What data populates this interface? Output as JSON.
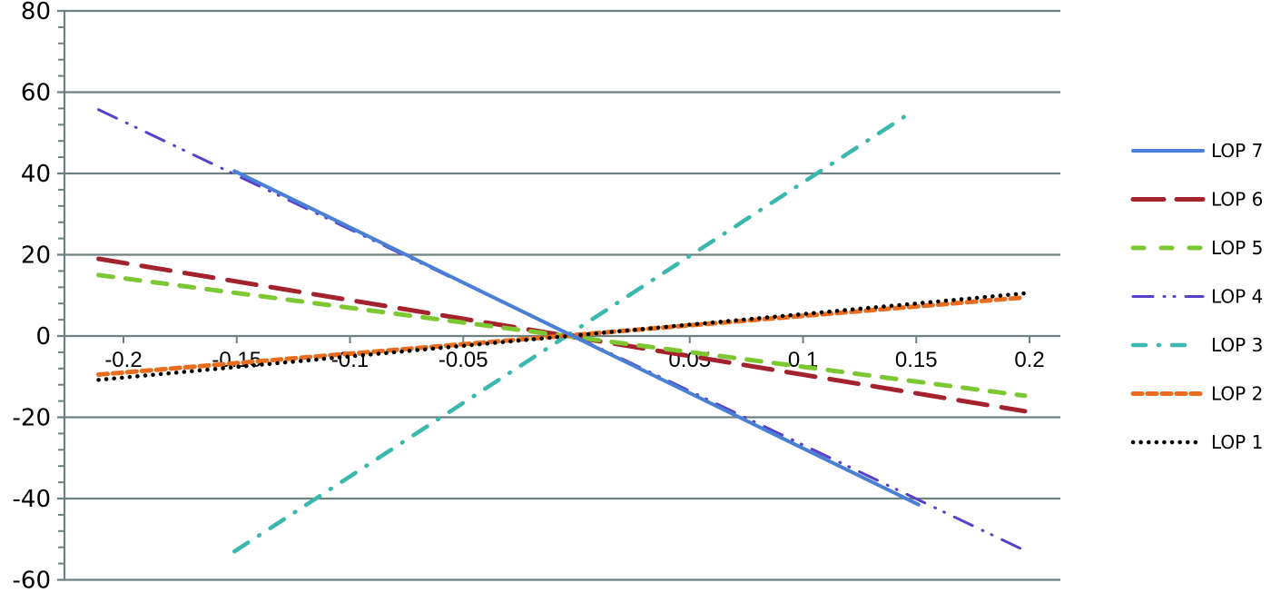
{
  "chart_data": {
    "type": "line",
    "title": "",
    "xlabel": "",
    "ylabel": "",
    "xlim": [
      -0.22,
      0.24
    ],
    "ylim": [
      -60,
      80
    ],
    "y_ticks": [
      80,
      60,
      40,
      20,
      0,
      -20,
      -40,
      -60
    ],
    "y_tick_labels": [
      "80",
      "60",
      "40",
      "20",
      "0",
      "-20",
      "-40",
      "-60"
    ],
    "x_ticks": [
      -0.2,
      -0.15,
      -0.1,
      -0.05,
      0.05,
      0.1,
      0.15,
      0.2
    ],
    "x_tick_labels": [
      "-0.2",
      "-0.15",
      "-0.1",
      "-0.05",
      "0.05",
      "0.1",
      "0.15",
      "0.2"
    ],
    "grid": "horizontal major gridlines",
    "legend_position": "right",
    "series": [
      {
        "name": "LOP 7",
        "style": "solid",
        "color": "#4a7fd6",
        "x": [
          -0.151,
          0.151
        ],
        "y": [
          40.6,
          -41.5
        ]
      },
      {
        "name": "LOP 6",
        "style": "long-dash",
        "color": "#a3222e",
        "x": [
          -0.211,
          0.198
        ],
        "y": [
          19.0,
          -18.5
        ]
      },
      {
        "name": "LOP 5",
        "style": "dash",
        "color": "#7dc832",
        "x": [
          -0.211,
          0.198
        ],
        "y": [
          15.0,
          -14.7
        ]
      },
      {
        "name": "LOP 4",
        "style": "long-dash-dot-dot",
        "color": "#5a3fc9",
        "x": [
          -0.211,
          0.198
        ],
        "y": [
          55.7,
          -52.8
        ]
      },
      {
        "name": "LOP 3",
        "style": "dash-dot",
        "color": "#3ab8ad",
        "x": [
          -0.151,
          0.149
        ],
        "y": [
          -53.0,
          55.5
        ]
      },
      {
        "name": "LOP 2",
        "style": "short-dash",
        "color": "#e86d1f",
        "x": [
          -0.211,
          0.198
        ],
        "y": [
          -9.5,
          9.5
        ]
      },
      {
        "name": "LOP 1",
        "style": "dot",
        "color": "#000000",
        "x": [
          -0.211,
          0.198
        ],
        "y": [
          -10.8,
          10.5
        ]
      }
    ]
  },
  "legend": {
    "items": [
      "LOP 7",
      "LOP 6",
      "LOP 5",
      "LOP 4",
      "LOP 3",
      "LOP 2",
      "LOP 1"
    ]
  }
}
